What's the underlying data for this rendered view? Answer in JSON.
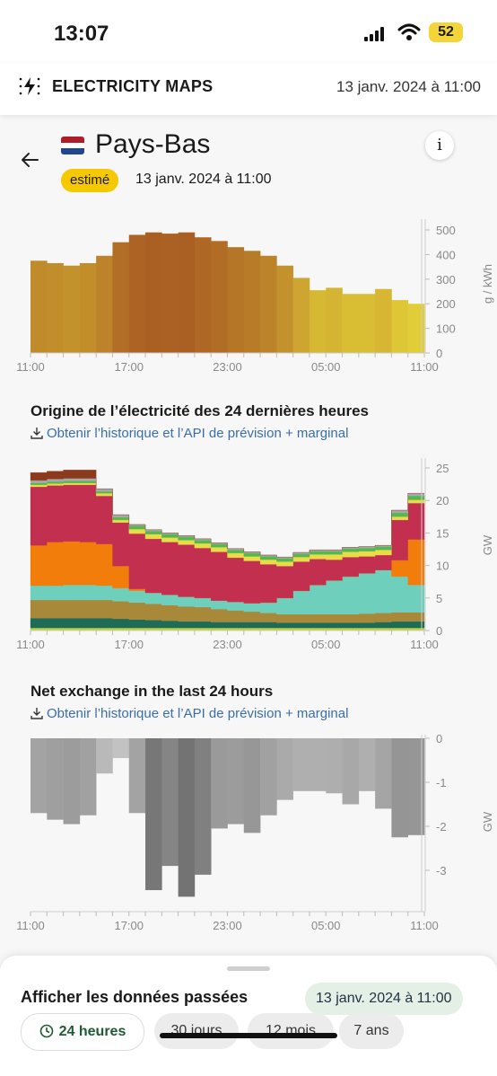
{
  "status": {
    "time": "13:07",
    "battery": "52"
  },
  "appbar": {
    "brand": "ELECTRICITY MAPS",
    "date": "13 janv. 2024 à 11:00"
  },
  "zone": {
    "name": "Pays-Bas",
    "badge": "estimé",
    "date": "13 janv. 2024 à 11:00",
    "info_label": "i",
    "flag_colors": [
      "#ae1c28",
      "#ffffff",
      "#21468b"
    ]
  },
  "carbon_chart": {
    "type": "bar",
    "ylabel": "g / kWh",
    "yticks": [
      "500",
      "400",
      "300",
      "200",
      "100",
      "0"
    ],
    "xticks": [
      "11:00",
      "17:00",
      "23:00",
      "05:00",
      "11:00"
    ],
    "values": [
      375,
      365,
      355,
      365,
      395,
      450,
      480,
      490,
      485,
      490,
      470,
      455,
      430,
      415,
      395,
      355,
      305,
      255,
      265,
      240,
      240,
      260,
      215,
      200
    ],
    "ylim": [
      0,
      560
    ]
  },
  "origin_section": {
    "title": "Origine de l’électricité des 24 dernières heures",
    "link": "Obtenir l’historique et l’API de prévision + marginal"
  },
  "production_chart": {
    "type": "area",
    "ylabel": "GW",
    "yticks": [
      "25",
      "20",
      "15",
      "10",
      "5",
      "0"
    ],
    "xticks": [
      "11:00",
      "17:00",
      "23:00",
      "05:00",
      "11:00"
    ],
    "ylim": [
      0,
      26
    ],
    "series": [
      {
        "color": "#c0d132",
        "values": [
          0.4,
          0.4,
          0.4,
          0.4,
          0.4,
          0.4,
          0.4,
          0.4,
          0.4,
          0.4,
          0.4,
          0.4,
          0.4,
          0.4,
          0.4,
          0.4,
          0.4,
          0.4,
          0.4,
          0.4,
          0.4,
          0.4,
          0.4,
          0.4
        ]
      },
      {
        "color": "#1e6b58",
        "values": [
          1.5,
          1.5,
          1.5,
          1.5,
          1.5,
          1.4,
          1.3,
          1.2,
          1.1,
          1.0,
          1.0,
          0.9,
          0.9,
          0.9,
          0.9,
          0.8,
          0.8,
          0.8,
          0.8,
          0.8,
          0.8,
          0.9,
          1.0,
          1.0
        ]
      },
      {
        "color": "#a8893a",
        "values": [
          2.8,
          2.8,
          2.8,
          2.8,
          2.8,
          2.7,
          2.6,
          2.5,
          2.4,
          2.3,
          2.2,
          2.0,
          1.8,
          1.6,
          1.4,
          1.3,
          1.3,
          1.3,
          1.3,
          1.3,
          1.4,
          1.4,
          1.4,
          1.4
        ]
      },
      {
        "color": "#6fcfbd",
        "values": [
          2.2,
          2.2,
          2.3,
          2.3,
          2.2,
          2.0,
          1.8,
          1.7,
          1.6,
          1.5,
          1.4,
          1.3,
          1.3,
          1.3,
          1.6,
          2.5,
          3.6,
          4.5,
          5.2,
          5.8,
          6.2,
          6.6,
          5.5,
          4.2
        ]
      },
      {
        "color": "#f27d0a",
        "values": [
          6.2,
          6.7,
          6.7,
          6.6,
          6.4,
          3.4,
          0.3,
          0,
          0,
          0,
          0,
          0,
          0,
          0,
          0,
          0,
          0,
          0,
          0,
          0,
          0,
          0,
          2.5,
          7.0
        ]
      },
      {
        "color": "#c3304f",
        "values": [
          9.0,
          8.7,
          8.7,
          8.8,
          7.4,
          6.7,
          8.5,
          8.3,
          8.1,
          8.0,
          7.7,
          7.5,
          6.8,
          6.5,
          5.9,
          4.9,
          4.5,
          4.0,
          3.2,
          3.0,
          2.6,
          2.3,
          6.2,
          5.6
        ]
      },
      {
        "color": "#e9dc48",
        "values": [
          0.3,
          0.3,
          0.3,
          0.3,
          0.4,
          0.4,
          0.7,
          0.7,
          0.7,
          0.7,
          0.7,
          0.7,
          0.7,
          0.7,
          0.7,
          0.7,
          0.7,
          0.7,
          0.8,
          0.8,
          0.8,
          0.8,
          0.5,
          0.5
        ]
      },
      {
        "color": "#52b84f",
        "values": [
          0.3,
          0.3,
          0.3,
          0.3,
          0.3,
          0.4,
          0.5,
          0.5,
          0.5,
          0.5,
          0.5,
          0.5,
          0.5,
          0.5,
          0.5,
          0.5,
          0.5,
          0.5,
          0.5,
          0.5,
          0.5,
          0.5,
          0.6,
          0.6
        ]
      },
      {
        "color": "#a8a8a8",
        "values": [
          0.4,
          0.4,
          0.4,
          0.4,
          0.4,
          0.4,
          0.2,
          0.2,
          0.2,
          0.2,
          0.2,
          0.2,
          0.2,
          0.2,
          0.2,
          0.2,
          0.2,
          0.2,
          0.2,
          0.2,
          0.2,
          0.2,
          0.4,
          0.4
        ]
      },
      {
        "color": "#8b3a1e",
        "values": [
          1.2,
          1.2,
          1.3,
          1.3,
          0,
          0,
          0,
          0,
          0,
          0,
          0,
          0,
          0,
          0,
          0,
          0,
          0,
          0,
          0,
          0,
          0,
          0,
          0,
          0
        ]
      }
    ]
  },
  "exchange_section": {
    "title": "Net exchange in the last 24 hours",
    "link": "Obtenir l’historique et l’API de prévision + marginal"
  },
  "exchange_chart": {
    "type": "bar",
    "ylabel": "GW",
    "yticks": [
      "0",
      "-1",
      "-2",
      "-3"
    ],
    "xticks": [
      "11:00",
      "17:00",
      "23:00",
      "05:00",
      "11:00"
    ],
    "ylim": [
      -3.85,
      0
    ],
    "values": [
      -1.7,
      -1.85,
      -1.95,
      -1.75,
      -0.8,
      -0.45,
      -1.7,
      -3.45,
      -2.9,
      -3.6,
      -3.1,
      -2.05,
      -1.95,
      -2.15,
      -1.75,
      -1.4,
      -1.2,
      -1.2,
      -1.25,
      -1.5,
      -1.2,
      -1.6,
      -2.25,
      -2.2
    ]
  },
  "sheet": {
    "title": "Afficher les données passées",
    "date": "13 janv. 2024 à 11:00",
    "options": [
      "24 heures",
      "30 jours",
      "12 mois",
      "7 ans"
    ]
  }
}
